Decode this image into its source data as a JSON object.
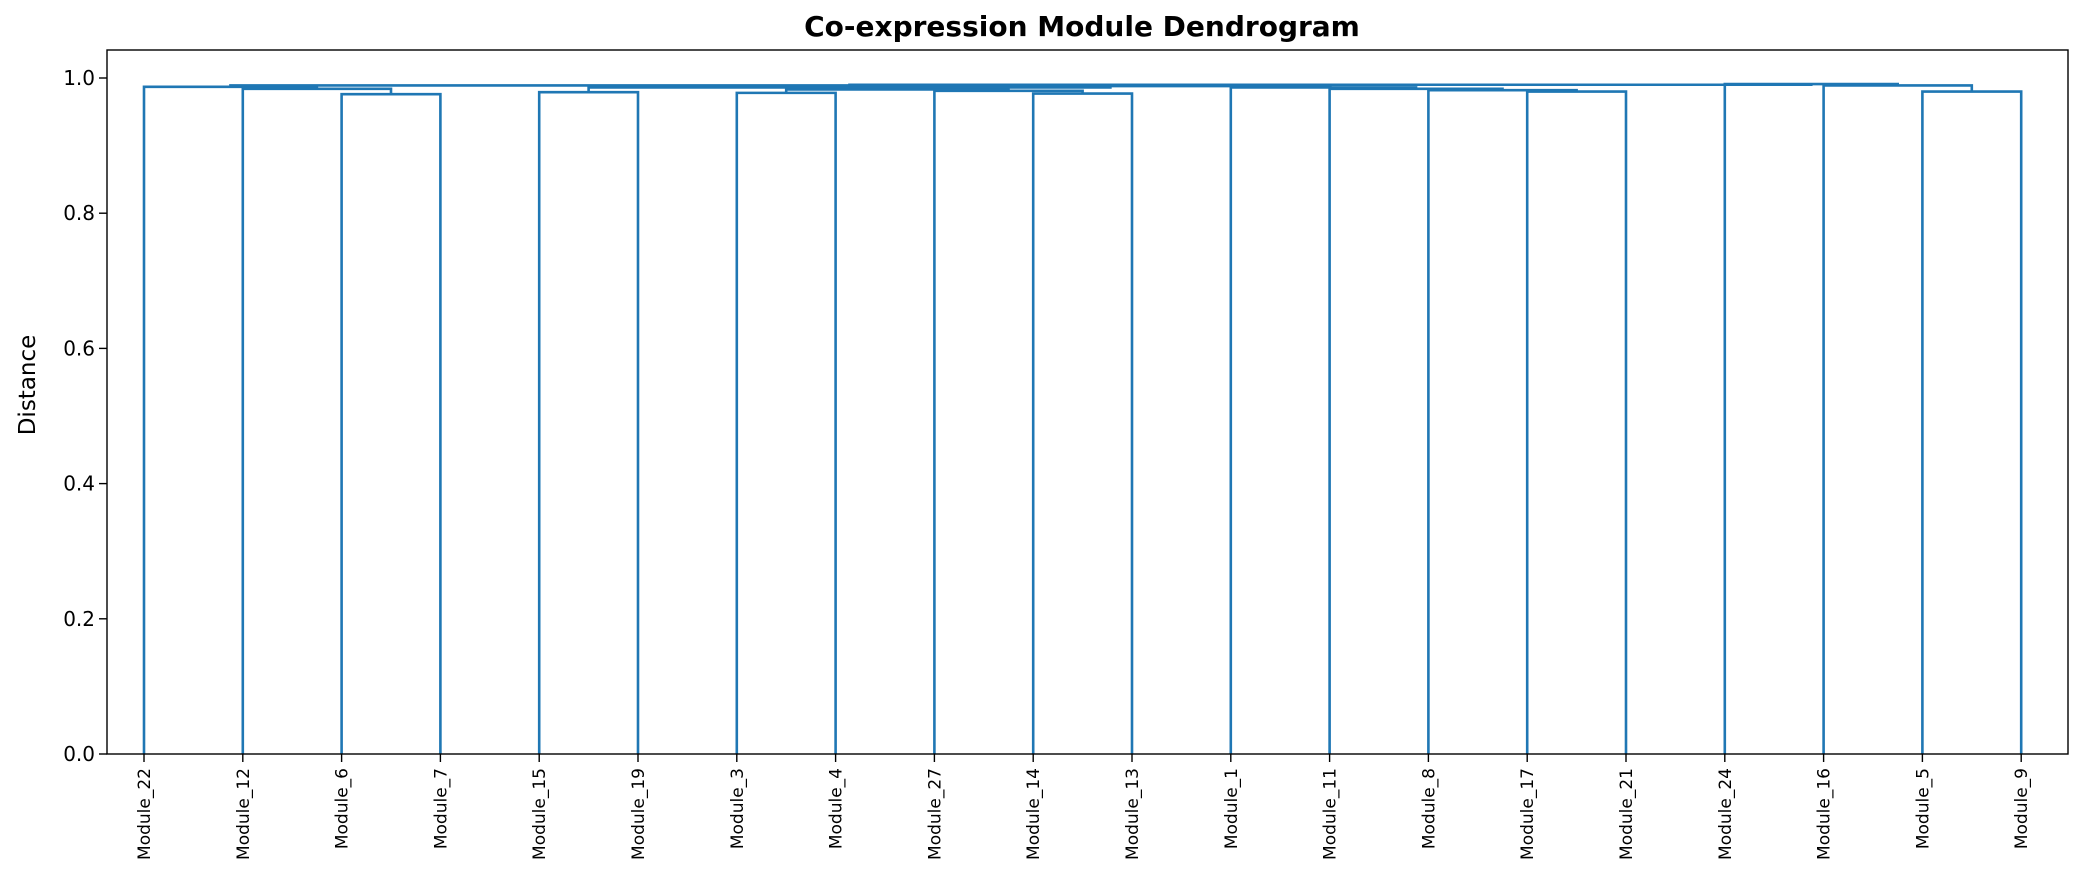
{
  "chart_data": {
    "type": "dendrogram",
    "title": "Co-expression Module Dendrogram",
    "xlabel": "",
    "ylabel": "Distance",
    "ylim": [
      0,
      1.04
    ],
    "yticks": [
      0.0,
      0.2,
      0.4,
      0.6,
      0.8,
      1.0
    ],
    "ytick_labels": [
      "0.0",
      "0.2",
      "0.4",
      "0.6",
      "0.8",
      "1.0"
    ],
    "grid": false,
    "link_color": "#1f77b4",
    "leaves": [
      "Module_22",
      "Module_12",
      "Module_6",
      "Module_7",
      "Module_15",
      "Module_19",
      "Module_3",
      "Module_4",
      "Module_27",
      "Module_14",
      "Module_13",
      "Module_1",
      "Module_11",
      "Module_8",
      "Module_17",
      "Module_21",
      "Module_24",
      "Module_16",
      "Module_5",
      "Module_9"
    ],
    "merges": [
      {
        "left": "Module_6",
        "right": "Module_7",
        "height": 0.976
      },
      {
        "left": "Module_12",
        "right": "Module_6+Module_7",
        "height": 0.984
      },
      {
        "left": "Module_15",
        "right": "Module_19",
        "height": 0.979
      },
      {
        "left": "Module_3",
        "right": "Module_4",
        "height": 0.978
      },
      {
        "left": "Module_14",
        "right": "Module_13",
        "height": 0.977
      },
      {
        "left": "Module_27",
        "right": "Module_14+Module_13",
        "height": 0.981
      },
      {
        "left": "Module_3+Module_4",
        "right": "Module_27+Module_14+Module_13",
        "height": 0.983
      },
      {
        "left": "Module_17",
        "right": "Module_21",
        "height": 0.98
      },
      {
        "left": "Module_8",
        "right": "Module_17+Module_21",
        "height": 0.982
      },
      {
        "left": "Module_11",
        "right": "Module_8+Module_17+Module_21",
        "height": 0.984
      },
      {
        "left": "Module_1",
        "right": "Module_11+Module_8+Module_17+Module_21",
        "height": 0.986
      },
      {
        "left": "Module_3+Module_4+Module_27+Module_14+Module_13",
        "right": "Module_1+Module_11+Module_8+Module_17+Module_21",
        "height": 0.988
      },
      {
        "left": "Module_15+Module_19",
        "right": "Module_3..Module_21",
        "height": 0.986
      },
      {
        "left": "Module_22",
        "right": "Module_12+Module_6+Module_7",
        "height": 0.987
      },
      {
        "left": "Module_5",
        "right": "Module_9",
        "height": 0.98
      },
      {
        "left": "Module_16",
        "right": "Module_5+Module_9",
        "height": 0.989
      },
      {
        "left": "Module_24",
        "right": "Module_16+Module_5+Module_9",
        "height": 0.991
      },
      {
        "left": "Module_15..Module_21",
        "right": "Module_24+Module_16+Module_5+Module_9",
        "height": 0.99
      },
      {
        "left": "Module_22+Module_12+Module_6+Module_7",
        "right": "Module_15..Module_9",
        "height": 0.989
      }
    ]
  }
}
